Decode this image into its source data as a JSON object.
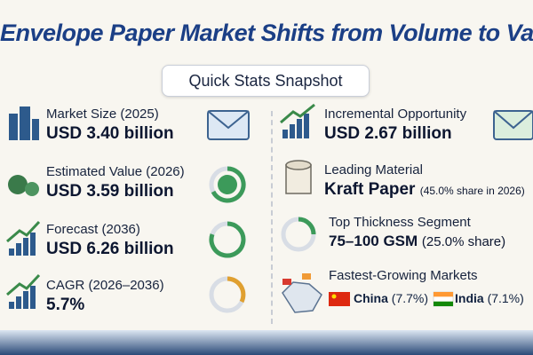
{
  "header": {
    "title": "Envelope Paper Market Shifts from Volume to Value",
    "subtitle": "Quick Stats Snapshot"
  },
  "stats": [
    {
      "label": "Market Size (2025)",
      "value": "USD 3.40 billion"
    },
    {
      "label": "Estimated Value (2026)",
      "value": "USD 3.59 billion"
    },
    {
      "label": "Forecast (2036)",
      "value": "USD 6.26 billion"
    },
    {
      "label": "CAGR (2026–2036)",
      "value": "5.7%"
    },
    {
      "label": "Incremental Opportunity",
      "value": "USD 2.67 billion"
    },
    {
      "label": "Leading Material",
      "value": "Kraft Paper",
      "note": "(45.0% share in 2026)"
    },
    {
      "label": "Top Thickness Segment",
      "value": "75–100 GSM",
      "note": "(25.0% share)"
    },
    {
      "label": "Fastest-Growing Markets",
      "markets": [
        {
          "name": "China",
          "rate": "(7.7%)"
        },
        {
          "name": "India",
          "rate": "(7.1%)"
        }
      ]
    }
  ]
}
